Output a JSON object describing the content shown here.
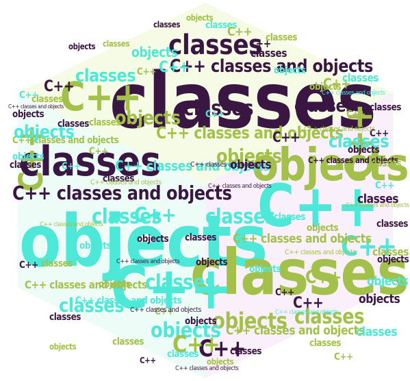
{
  "colors": {
    "dark": "#3a1743",
    "cyan": "#4de8d8",
    "olive": "#a3c14a",
    "pale_cyan": "#eafcf9",
    "pale_olive": "#f5f9e2",
    "pale_purple": "#f7eefa"
  },
  "words": {
    "classes": "classes",
    "objects": "objects",
    "cpp": "C++",
    "phrase": "C++ classes and objects"
  }
}
